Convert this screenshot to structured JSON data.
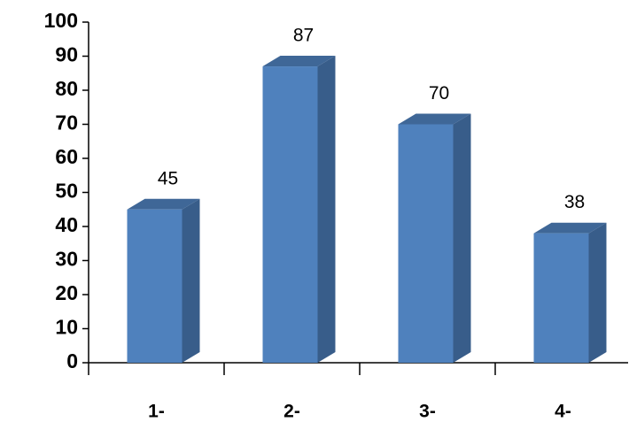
{
  "chart_data": {
    "type": "bar3d",
    "categories": [
      "1-",
      "2-",
      "3-",
      "4-"
    ],
    "values": [
      45,
      87,
      70,
      38
    ],
    "color": "#4f81bd",
    "ylim": [
      0,
      100
    ],
    "yticks": [
      0,
      10,
      20,
      30,
      40,
      50,
      60,
      70,
      80,
      90,
      100
    ],
    "grid": false
  }
}
